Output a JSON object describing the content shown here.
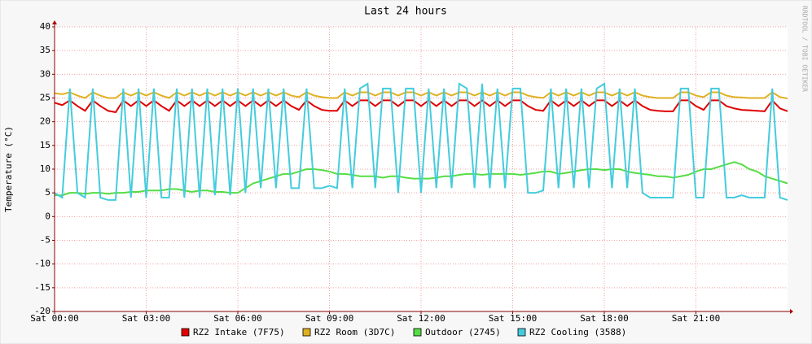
{
  "chart_data": {
    "type": "line",
    "title": "Last 24 hours",
    "ylabel": "Temperature (°C)",
    "watermark": "RRDTOOL / TOBI OETIKER",
    "grid": true,
    "xlim": [
      0,
      24
    ],
    "ylim": [
      -20,
      40
    ],
    "xticks": [
      {
        "value": 0,
        "label": "Sat 00:00"
      },
      {
        "value": 3,
        "label": "Sat 03:00"
      },
      {
        "value": 6,
        "label": "Sat 06:00"
      },
      {
        "value": 9,
        "label": "Sat 09:00"
      },
      {
        "value": 12,
        "label": "Sat 12:00"
      },
      {
        "value": 15,
        "label": "Sat 15:00"
      },
      {
        "value": 18,
        "label": "Sat 18:00"
      },
      {
        "value": 21,
        "label": "Sat 21:00"
      }
    ],
    "yticks": [
      -20,
      -15,
      -10,
      -5,
      0,
      5,
      10,
      15,
      20,
      25,
      30,
      35,
      40
    ],
    "x": [
      0,
      0.25,
      0.5,
      0.75,
      1,
      1.25,
      1.5,
      1.75,
      2,
      2.25,
      2.5,
      2.75,
      3,
      3.25,
      3.5,
      3.75,
      4,
      4.25,
      4.5,
      4.75,
      5,
      5.25,
      5.5,
      5.75,
      6,
      6.25,
      6.5,
      6.75,
      7,
      7.25,
      7.5,
      7.75,
      8,
      8.25,
      8.5,
      8.75,
      9,
      9.25,
      9.5,
      9.75,
      10,
      10.25,
      10.5,
      10.75,
      11,
      11.25,
      11.5,
      11.75,
      12,
      12.25,
      12.5,
      12.75,
      13,
      13.25,
      13.5,
      13.75,
      14,
      14.25,
      14.5,
      14.75,
      15,
      15.25,
      15.5,
      15.75,
      16,
      16.25,
      16.5,
      16.75,
      17,
      17.25,
      17.5,
      17.75,
      18,
      18.25,
      18.5,
      18.75,
      19,
      19.25,
      19.5,
      19.75,
      20,
      20.25,
      20.5,
      20.75,
      21,
      21.25,
      21.5,
      21.75,
      22,
      22.25,
      22.5,
      22.75,
      23,
      23.25,
      23.5,
      23.75,
      24
    ],
    "series": [
      {
        "name": "RZ2 Intake (7F75)",
        "color": "#e00000",
        "values": [
          24,
          23.5,
          24.5,
          23.3,
          22.3,
          24.5,
          23.3,
          22.3,
          22,
          24.5,
          23.3,
          24.5,
          23.3,
          24.5,
          23.3,
          22.3,
          24.5,
          23.3,
          24.5,
          23.3,
          24.5,
          23.3,
          24.5,
          23.3,
          24.5,
          23.3,
          24.5,
          23.3,
          24.5,
          23.3,
          24.5,
          23.3,
          22.5,
          24.5,
          23.3,
          22.5,
          22.3,
          22.3,
          24.5,
          23.3,
          24.5,
          24.5,
          23.3,
          24.5,
          24.5,
          23.3,
          24.5,
          24.5,
          23.3,
          24.5,
          23.3,
          24.5,
          23.3,
          24.5,
          24.5,
          23.3,
          24.5,
          23.3,
          24.5,
          23.3,
          24.5,
          24.5,
          23.3,
          22.5,
          22.3,
          24.5,
          23.3,
          24.5,
          23.3,
          24.5,
          23.3,
          24.5,
          24.5,
          23.3,
          24.5,
          23.3,
          24.5,
          23.3,
          22.5,
          22.3,
          22.2,
          22.2,
          24.5,
          24.5,
          23.3,
          22.5,
          24.5,
          24.5,
          23.3,
          22.8,
          22.5,
          22.4,
          22.3,
          22.2,
          24.5,
          22.8,
          22.2
        ]
      },
      {
        "name": "RZ2 Room (3D7C)",
        "color": "#e0b020",
        "values": [
          26,
          25.8,
          26.2,
          25.5,
          25,
          26.2,
          25.5,
          25,
          25,
          26.2,
          25.5,
          26.2,
          25.5,
          26.2,
          25.5,
          25,
          26.2,
          25.5,
          26.2,
          25.5,
          26.2,
          25.5,
          26.2,
          25.5,
          26.2,
          25.5,
          26.2,
          25.5,
          26.2,
          25.5,
          26.2,
          25.5,
          25.2,
          26.2,
          25.5,
          25.2,
          25,
          25,
          26.2,
          25.5,
          26.2,
          26.2,
          25.5,
          26.2,
          26.2,
          25.5,
          26.2,
          26.2,
          25.5,
          26.2,
          25.5,
          26.2,
          25.5,
          26.2,
          26.2,
          25.5,
          26.2,
          25.5,
          26.2,
          25.5,
          26.2,
          26.2,
          25.5,
          25.2,
          25,
          26.2,
          25.5,
          26.2,
          25.5,
          26.2,
          25.5,
          26.2,
          26.2,
          25.5,
          26.2,
          25.5,
          26.2,
          25.5,
          25.2,
          25,
          25,
          25,
          26.2,
          26.2,
          25.5,
          25.2,
          26.2,
          26.2,
          25.5,
          25.2,
          25.1,
          25,
          25,
          25,
          26.2,
          25.2,
          24.9
        ]
      },
      {
        "name": "Outdoor (2745)",
        "color": "#55dd44",
        "values": [
          4.5,
          4.5,
          5,
          5,
          4.8,
          5,
          5,
          4.8,
          5,
          5,
          5.2,
          5.2,
          5.5,
          5.5,
          5.5,
          5.8,
          5.8,
          5.5,
          5.2,
          5.5,
          5.5,
          5.2,
          5.2,
          5,
          5,
          6,
          7,
          7.5,
          8,
          8.5,
          9,
          9,
          9.5,
          10,
          10,
          9.8,
          9.5,
          9,
          9,
          8.8,
          8.5,
          8.5,
          8.5,
          8.2,
          8.5,
          8.5,
          8.2,
          8,
          8,
          8,
          8.2,
          8.5,
          8.5,
          8.8,
          9,
          9,
          8.8,
          9,
          9,
          9,
          9,
          8.8,
          9,
          9.2,
          9.5,
          9.5,
          9,
          9.2,
          9.5,
          9.8,
          10,
          10,
          9.8,
          10,
          10,
          9.5,
          9.2,
          9,
          8.8,
          8.5,
          8.5,
          8.2,
          8.5,
          8.8,
          9.5,
          10,
          10,
          10.5,
          11,
          11.5,
          11,
          10,
          9.5,
          8.5,
          8,
          7.5,
          7
        ]
      },
      {
        "name": "RZ2 Cooling (3588)",
        "color": "#44ccdd",
        "values": [
          5,
          4,
          27,
          5,
          4,
          27,
          4,
          3.5,
          3.5,
          27,
          4,
          27,
          4,
          27,
          4,
          4,
          27,
          4,
          27,
          4,
          27,
          4.5,
          27,
          4.5,
          27,
          5,
          27,
          6,
          27,
          6,
          27,
          6,
          6,
          27,
          6,
          6,
          6.5,
          6,
          27,
          6,
          27,
          28,
          6,
          27,
          27,
          5,
          27,
          27,
          5,
          27,
          6,
          27,
          6,
          28,
          27,
          6,
          28,
          6,
          27,
          6,
          27,
          27,
          5,
          5,
          5.5,
          27,
          6,
          27,
          6,
          27,
          6,
          27,
          28,
          6,
          27,
          6,
          27,
          5,
          4,
          4,
          4,
          4,
          27,
          27,
          4,
          4,
          27,
          27,
          4,
          4,
          4.5,
          4,
          4,
          4,
          27,
          4,
          3.5
        ]
      }
    ]
  }
}
